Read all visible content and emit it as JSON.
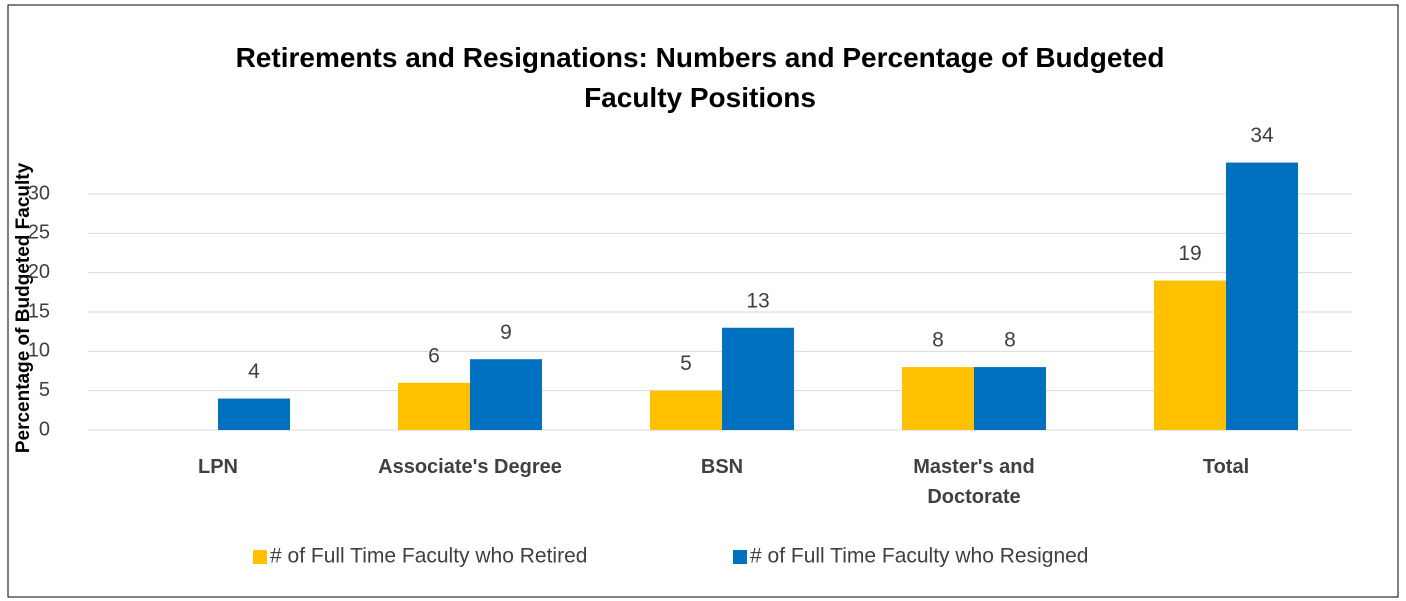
{
  "chart_data": {
    "type": "bar",
    "title": "Retirements and Resignations: Numbers and Percentage of Budgeted Faculty Positions",
    "y_axis_label": "Percentage of Budgeted Faculty",
    "categories": [
      "LPN",
      "Associate's Degree",
      "BSN",
      "Master's and Doctorate",
      "Total"
    ],
    "series": [
      {
        "name": "# of Full Time Faculty who Retired",
        "color": "#FFC000",
        "values": [
          null,
          6,
          5,
          8,
          19
        ]
      },
      {
        "name": "# of Full Time Faculty who Resigned",
        "color": "#0070C0",
        "values": [
          4,
          9,
          13,
          8,
          34
        ]
      }
    ],
    "ylim": [
      0,
      35
    ],
    "yticks": [
      0,
      5,
      10,
      15,
      20,
      25,
      30
    ],
    "grid": true,
    "legend": "bottom"
  }
}
